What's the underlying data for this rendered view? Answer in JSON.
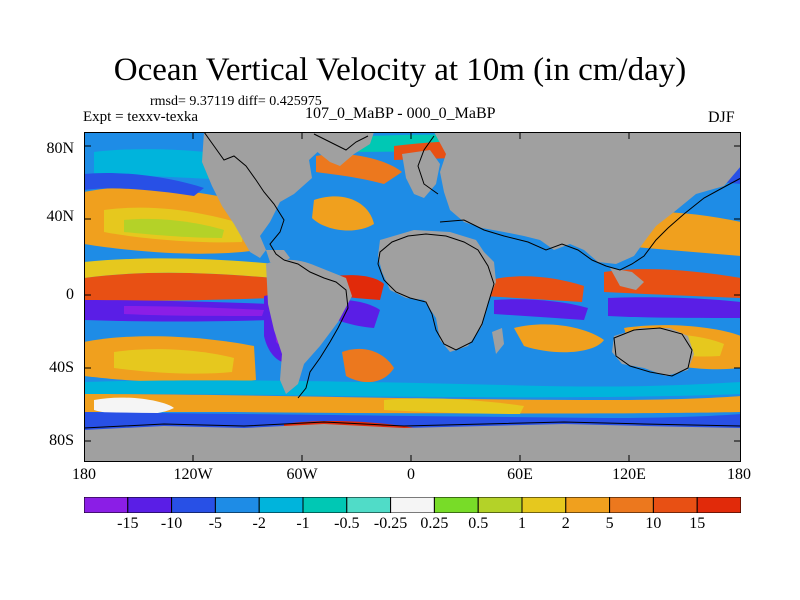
{
  "figure": {
    "title": "Ocean Vertical Velocity at 10m (in cm/day)",
    "stats": "rmsd= 9.37119  diff= 0.425975",
    "expt": "Expt = texxv-texka",
    "subtitle": "107_0_MaBP - 000_0_MaBP",
    "season": "DJF"
  },
  "map": {
    "lat_labels": [
      "80N",
      "40N",
      "0",
      "40S",
      "80S"
    ],
    "lon_labels": [
      "180",
      "120W",
      "60W",
      "0",
      "60E",
      "120E",
      "180"
    ]
  },
  "colorbar": {
    "labels": [
      "-15",
      "-10",
      "-5",
      "-2",
      "-1",
      "-0.5",
      "-0.25",
      "0.25",
      "0.5",
      "1",
      "2",
      "5",
      "10",
      "15"
    ],
    "colors": [
      "#8b1ee6",
      "#5a1ee6",
      "#2850e6",
      "#1e8ce6",
      "#00b4dc",
      "#00c8b4",
      "#50dcc8",
      "#f5f5f5",
      "#78dc28",
      "#b4d228",
      "#e6c81e",
      "#f0a01e",
      "#ec781e",
      "#e85014",
      "#e12a0a"
    ]
  },
  "colors": {
    "land": "#a0a0a0",
    "outline": "#000000"
  }
}
